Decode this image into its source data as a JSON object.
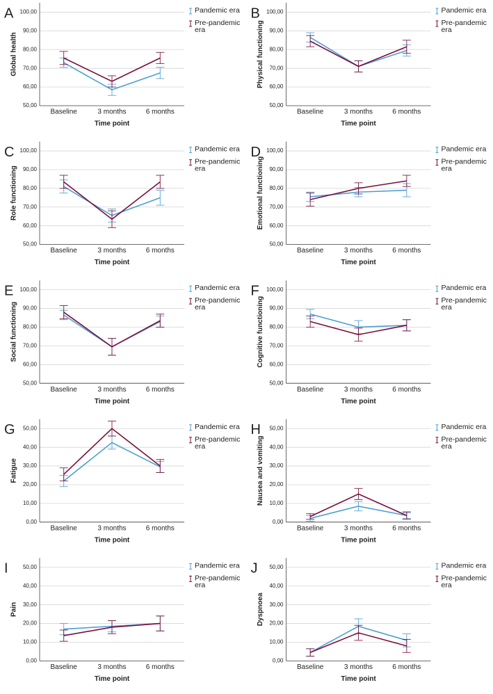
{
  "chart_data": [
    {
      "type": "line",
      "panel": "A",
      "ylabel": "Global health",
      "xlabel": "Time point",
      "categories": [
        "Baseline",
        "3 months",
        "6 months"
      ],
      "series": [
        {
          "name": "Pandemic era",
          "color": "#4a9fd4",
          "values": [
            73,
            58.5,
            67.5
          ],
          "errors": [
            2.5,
            3,
            3
          ]
        },
        {
          "name": "Pre-pandemic era",
          "color": "#7b0d3a",
          "values": [
            75.5,
            63,
            75.5
          ],
          "errors": [
            3.5,
            3,
            3
          ]
        }
      ],
      "ylim": [
        50,
        105
      ],
      "yticks": [
        {
          "value": 50,
          "label": "50,00"
        },
        {
          "value": 60,
          "label": "60,00"
        },
        {
          "value": 70,
          "label": "70,00"
        },
        {
          "value": 80,
          "label": "80,00"
        },
        {
          "value": 90,
          "label": "90,00"
        },
        {
          "value": 100,
          "label": "100,00"
        }
      ],
      "grid": true
    },
    {
      "type": "line",
      "panel": "B",
      "ylabel": "Physical functioning",
      "xlabel": "Time point",
      "categories": [
        "Baseline",
        "3 months",
        "6 months"
      ],
      "series": [
        {
          "name": "Pandemic era",
          "color": "#4a9fd4",
          "values": [
            86.5,
            71,
            79.5
          ],
          "errors": [
            2.5,
            3,
            3
          ]
        },
        {
          "name": "Pre-pandemic era",
          "color": "#7b0d3a",
          "values": [
            84.5,
            71,
            81.5
          ],
          "errors": [
            3,
            3,
            3.5
          ]
        }
      ],
      "ylim": [
        50,
        105
      ],
      "yticks": [
        {
          "value": 50,
          "label": "50,00"
        },
        {
          "value": 60,
          "label": "60,00"
        },
        {
          "value": 70,
          "label": "70,00"
        },
        {
          "value": 80,
          "label": "80,00"
        },
        {
          "value": 90,
          "label": "90,00"
        },
        {
          "value": 100,
          "label": "100,00"
        }
      ],
      "grid": true
    },
    {
      "type": "line",
      "panel": "C",
      "ylabel": "Role functioning",
      "xlabel": "Time point",
      "categories": [
        "Baseline",
        "3 months",
        "6 months"
      ],
      "series": [
        {
          "name": "Pandemic era",
          "color": "#4a9fd4",
          "values": [
            81,
            65.5,
            75
          ],
          "errors": [
            3.5,
            3.5,
            4
          ]
        },
        {
          "name": "Pre-pandemic era",
          "color": "#7b0d3a",
          "values": [
            83.5,
            63.5,
            83.5
          ],
          "errors": [
            3.5,
            4.5,
            3.5
          ]
        }
      ],
      "ylim": [
        50,
        105
      ],
      "yticks": [
        {
          "value": 50,
          "label": "50,00"
        },
        {
          "value": 60,
          "label": "60,00"
        },
        {
          "value": 70,
          "label": "70,00"
        },
        {
          "value": 80,
          "label": "80,00"
        },
        {
          "value": 90,
          "label": "90,00"
        },
        {
          "value": 100,
          "label": "100,00"
        }
      ],
      "grid": true
    },
    {
      "type": "line",
      "panel": "D",
      "ylabel": "Emotional functioning",
      "xlabel": "Time point",
      "categories": [
        "Baseline",
        "3 months",
        "6 months"
      ],
      "series": [
        {
          "name": "Pandemic era",
          "color": "#4a9fd4",
          "values": [
            75.5,
            78,
            79
          ],
          "errors": [
            2.5,
            2.5,
            3.5
          ]
        },
        {
          "name": "Pre-pandemic era",
          "color": "#7b0d3a",
          "values": [
            74,
            80,
            84
          ],
          "errors": [
            3.5,
            3,
            3
          ]
        }
      ],
      "ylim": [
        50,
        105
      ],
      "yticks": [
        {
          "value": 50,
          "label": "50,00"
        },
        {
          "value": 60,
          "label": "60,00"
        },
        {
          "value": 70,
          "label": "70,00"
        },
        {
          "value": 80,
          "label": "80,00"
        },
        {
          "value": 90,
          "label": "90,00"
        },
        {
          "value": 100,
          "label": "100,00"
        }
      ],
      "grid": true
    },
    {
      "type": "line",
      "panel": "E",
      "ylabel": "Social functioning",
      "xlabel": "Time point",
      "categories": [
        "Baseline",
        "3 months",
        "6 months"
      ],
      "series": [
        {
          "name": "Pandemic era",
          "color": "#4a9fd4",
          "values": [
            86.5,
            69.5,
            83
          ],
          "errors": [
            2.5,
            4.5,
            3
          ]
        },
        {
          "name": "Pre-pandemic era",
          "color": "#7b0d3a",
          "values": [
            88,
            69.5,
            83.5
          ],
          "errors": [
            3.5,
            4.5,
            3.5
          ]
        }
      ],
      "ylim": [
        50,
        105
      ],
      "yticks": [
        {
          "value": 50,
          "label": "50,00"
        },
        {
          "value": 60,
          "label": "60,00"
        },
        {
          "value": 70,
          "label": "70,00"
        },
        {
          "value": 80,
          "label": "80,00"
        },
        {
          "value": 90,
          "label": "90,00"
        },
        {
          "value": 100,
          "label": "100,00"
        }
      ],
      "grid": true
    },
    {
      "type": "line",
      "panel": "F",
      "ylabel": "Cognitive functioning",
      "xlabel": "Time point",
      "categories": [
        "Baseline",
        "3 months",
        "6 months"
      ],
      "series": [
        {
          "name": "Pandemic era",
          "color": "#4a9fd4",
          "values": [
            87,
            80,
            81
          ],
          "errors": [
            2.5,
            3.5,
            3
          ]
        },
        {
          "name": "Pre-pandemic era",
          "color": "#7b0d3a",
          "values": [
            83,
            76,
            81
          ],
          "errors": [
            3,
            3.5,
            3
          ]
        }
      ],
      "ylim": [
        50,
        105
      ],
      "yticks": [
        {
          "value": 50,
          "label": "50,00"
        },
        {
          "value": 60,
          "label": "60,00"
        },
        {
          "value": 70,
          "label": "70,00"
        },
        {
          "value": 80,
          "label": "80,00"
        },
        {
          "value": 90,
          "label": "90,00"
        },
        {
          "value": 100,
          "label": "100,00"
        }
      ],
      "grid": true
    },
    {
      "type": "line",
      "panel": "G",
      "ylabel": "Fatigue",
      "xlabel": "Time point",
      "categories": [
        "Baseline",
        "3 months",
        "6 months"
      ],
      "series": [
        {
          "name": "Pandemic era",
          "color": "#4a9fd4",
          "values": [
            22,
            42.5,
            29.5
          ],
          "errors": [
            3,
            3.5,
            3
          ]
        },
        {
          "name": "Pre-pandemic era",
          "color": "#7b0d3a",
          "values": [
            25.5,
            50,
            30
          ],
          "errors": [
            3.5,
            4,
            3.5
          ]
        }
      ],
      "ylim": [
        0,
        55
      ],
      "yticks": [
        {
          "value": 0,
          "label": "0,00"
        },
        {
          "value": 10,
          "label": "10,00"
        },
        {
          "value": 20,
          "label": "20,00"
        },
        {
          "value": 30,
          "label": "30,00"
        },
        {
          "value": 40,
          "label": "40,00"
        },
        {
          "value": 50,
          "label": "50,00"
        }
      ],
      "grid": true
    },
    {
      "type": "line",
      "panel": "H",
      "ylabel": "Nausea and vomiting",
      "xlabel": "Time point",
      "categories": [
        "Baseline",
        "3 months",
        "6 months"
      ],
      "series": [
        {
          "name": "Pandemic era",
          "color": "#4a9fd4",
          "values": [
            2,
            8.5,
            3.5
          ],
          "errors": [
            1.5,
            2.5,
            1.5
          ]
        },
        {
          "name": "Pre-pandemic era",
          "color": "#7b0d3a",
          "values": [
            3,
            15,
            3.5
          ],
          "errors": [
            1.5,
            3,
            2
          ]
        }
      ],
      "ylim": [
        0,
        55
      ],
      "yticks": [
        {
          "value": 0,
          "label": "0,00"
        },
        {
          "value": 10,
          "label": "10,00"
        },
        {
          "value": 20,
          "label": "20,00"
        },
        {
          "value": 30,
          "label": "30,00"
        },
        {
          "value": 40,
          "label": "40,00"
        },
        {
          "value": 50,
          "label": "50,00"
        }
      ],
      "grid": true
    },
    {
      "type": "line",
      "panel": "I",
      "ylabel": "Pain",
      "xlabel": "Time point",
      "categories": [
        "Baseline",
        "3 months",
        "6 months"
      ],
      "series": [
        {
          "name": "Pandemic era",
          "color": "#4a9fd4",
          "values": [
            17,
            18.5,
            20
          ],
          "errors": [
            3,
            3,
            4
          ]
        },
        {
          "name": "Pre-pandemic era",
          "color": "#7b0d3a",
          "values": [
            13.5,
            18,
            20
          ],
          "errors": [
            3,
            3.5,
            4
          ]
        }
      ],
      "ylim": [
        0,
        55
      ],
      "yticks": [
        {
          "value": 0,
          "label": "0,00"
        },
        {
          "value": 10,
          "label": "10,00"
        },
        {
          "value": 20,
          "label": "20,00"
        },
        {
          "value": 30,
          "label": "30,00"
        },
        {
          "value": 40,
          "label": "40,00"
        },
        {
          "value": 50,
          "label": "50,00"
        }
      ],
      "grid": true
    },
    {
      "type": "line",
      "panel": "J",
      "ylabel": "Dyspnoea",
      "xlabel": "Time point",
      "categories": [
        "Baseline",
        "3 months",
        "6 months"
      ],
      "series": [
        {
          "name": "Pandemic era",
          "color": "#4a9fd4",
          "values": [
            4.5,
            18.5,
            11
          ],
          "errors": [
            2,
            4,
            3.5
          ]
        },
        {
          "name": "Pre-pandemic era",
          "color": "#7b0d3a",
          "values": [
            4.5,
            15,
            8
          ],
          "errors": [
            2,
            4,
            3.5
          ]
        }
      ],
      "ylim": [
        0,
        55
      ],
      "yticks": [
        {
          "value": 0,
          "label": "0,00"
        },
        {
          "value": 10,
          "label": "10,00"
        },
        {
          "value": 20,
          "label": "20,00"
        },
        {
          "value": 30,
          "label": "30,00"
        },
        {
          "value": 40,
          "label": "40,00"
        },
        {
          "value": 50,
          "label": "50,00"
        }
      ],
      "grid": true
    }
  ]
}
